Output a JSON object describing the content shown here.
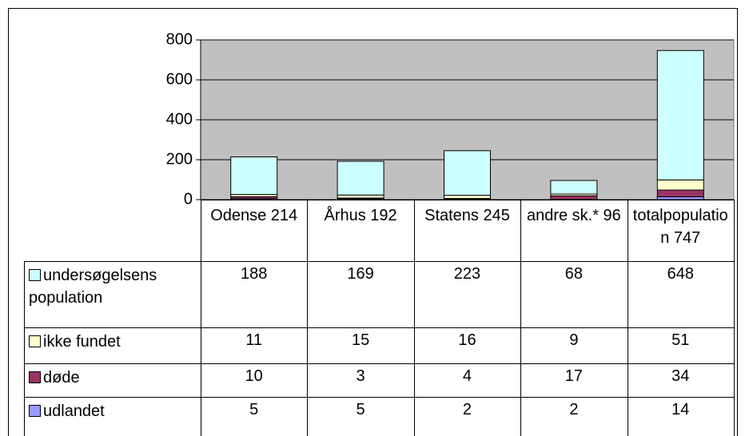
{
  "chart_data": {
    "type": "bar",
    "stacked": true,
    "categories": [
      "Odense 214",
      "Århus  192",
      "Statens 245",
      "andre sk.* 96",
      "totalpopulation 747"
    ],
    "series": [
      {
        "name": "undersøgelsens population",
        "color": "#ccffff",
        "values": [
          188,
          169,
          223,
          68,
          648
        ]
      },
      {
        "name": "ikke fundet",
        "color": "#ffffcc",
        "values": [
          11,
          15,
          16,
          9,
          51
        ]
      },
      {
        "name": "døde",
        "color": "#993366",
        "values": [
          10,
          3,
          4,
          17,
          34
        ]
      },
      {
        "name": "udlandet",
        "color": "#9999ff",
        "values": [
          5,
          5,
          2,
          2,
          14
        ]
      }
    ],
    "ylim": [
      0,
      800
    ],
    "yticks": [
      0,
      200,
      400,
      600,
      800
    ],
    "grid": true,
    "plot_background": "#c0c0c0"
  }
}
